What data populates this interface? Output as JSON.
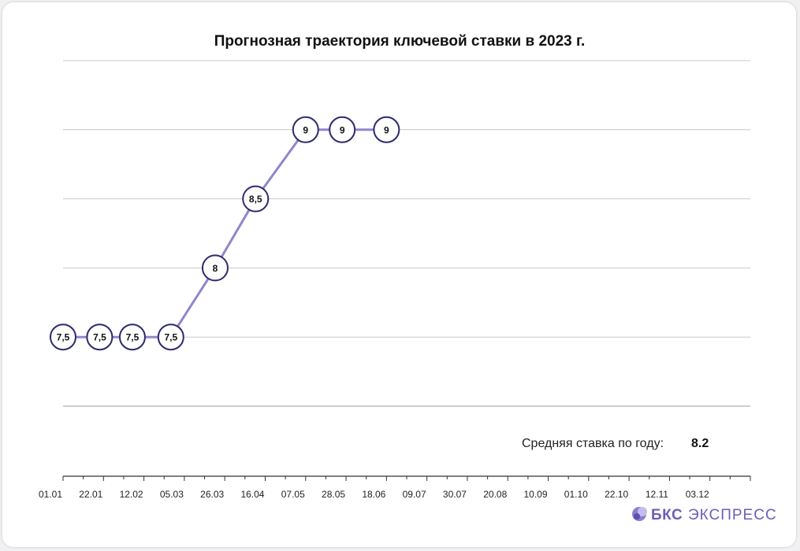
{
  "chart_data": {
    "type": "line",
    "title": "Прогнозная траектория ключевой ставки в 2023 г.",
    "x_ticks": [
      "01.01",
      "22.01",
      "12.02",
      "05.03",
      "26.03",
      "16.04",
      "07.05",
      "28.05",
      "18.06",
      "09.07",
      "30.07",
      "20.08",
      "10.09",
      "01.10",
      "22.10",
      "12.11",
      "03.12"
    ],
    "x_range": [
      "2023-01-01",
      "2023-12-24"
    ],
    "points": [
      {
        "x": "2023-01-01",
        "y": 7.5,
        "label": "7,5"
      },
      {
        "x": "2023-01-20",
        "y": 7.5,
        "label": "7,5"
      },
      {
        "x": "2023-02-06",
        "y": 7.5,
        "label": "7,5"
      },
      {
        "x": "2023-02-26",
        "y": 7.5,
        "label": "7,5"
      },
      {
        "x": "2023-03-21",
        "y": 8.0,
        "label": "8"
      },
      {
        "x": "2023-04-11",
        "y": 8.5,
        "label": "8,5"
      },
      {
        "x": "2023-05-07",
        "y": 9.0,
        "label": "9"
      },
      {
        "x": "2023-05-26",
        "y": 9.0,
        "label": "9"
      },
      {
        "x": "2023-06-18",
        "y": 9.0,
        "label": "9"
      }
    ],
    "ylim": [
      7,
      9.5
    ],
    "y_gridlines": [
      7.0,
      7.5,
      8.0,
      8.5,
      9.0,
      9.5
    ],
    "grid": true,
    "legend": false,
    "colors": {
      "line": "#8f86cc",
      "marker_stroke": "#2e2a6e",
      "grid": "#c9c9c9",
      "axis": "#333333"
    }
  },
  "annotation": {
    "label": "Средняя ставка по году:",
    "value": "8.2"
  },
  "brand": {
    "name_bold": "БКС",
    "name_rest": "ЭКСПРЕСС",
    "color": "#6b5fb8"
  }
}
